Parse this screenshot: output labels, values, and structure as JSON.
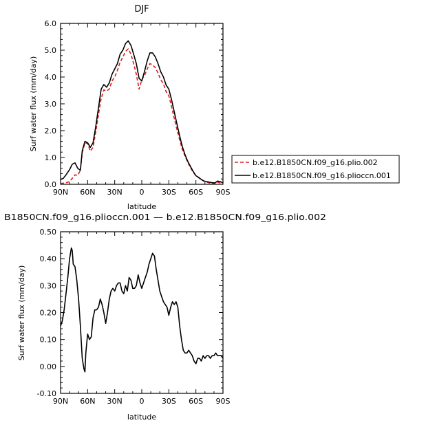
{
  "chart_data": [
    {
      "type": "line",
      "title": "DJF",
      "xlabel": "latitude",
      "ylabel": "Surf water flux (mm/day)",
      "xlim": [
        90,
        -90
      ],
      "ylim": [
        0,
        6
      ],
      "xticks": [
        90,
        60,
        30,
        0,
        -30,
        -60,
        -90
      ],
      "xtick_labels": [
        "90N",
        "60N",
        "30N",
        "0",
        "30S",
        "60S",
        "90S"
      ],
      "yticks": [
        0,
        1,
        2,
        3,
        4,
        5,
        6
      ],
      "ytick_labels": [
        "0.0",
        "1.0",
        "2.0",
        "3.0",
        "4.0",
        "5.0",
        "6.0"
      ],
      "grid": false,
      "legend_position": "right",
      "series": [
        {
          "name": "b.e12.B1850CN.f09_g16.plio.002",
          "color": "#dd1c1c",
          "dash": "dashed",
          "x": [
            90,
            87,
            84,
            80,
            77,
            74,
            71,
            68,
            66,
            63,
            60,
            57,
            54,
            51,
            48,
            45,
            42,
            39,
            36,
            33,
            30,
            27,
            24,
            21,
            18,
            15,
            12,
            9,
            6,
            3,
            0,
            -3,
            -6,
            -9,
            -12,
            -15,
            -18,
            -21,
            -24,
            -27,
            -30,
            -33,
            -36,
            -39,
            -42,
            -45,
            -48,
            -51,
            -54,
            -57,
            -60,
            -63,
            -66,
            -69,
            -72,
            -75,
            -78,
            -81,
            -84,
            -87,
            -90
          ],
          "values": [
            0.03,
            0.04,
            0.06,
            0.1,
            0.22,
            0.35,
            0.33,
            0.52,
            1.18,
            1.55,
            1.52,
            1.24,
            1.38,
            1.95,
            2.6,
            3.2,
            3.52,
            3.48,
            3.55,
            3.85,
            4.0,
            4.25,
            4.55,
            4.75,
            4.95,
            5.05,
            4.85,
            4.5,
            4.1,
            3.55,
            3.9,
            4.05,
            4.3,
            4.5,
            4.45,
            4.35,
            4.15,
            3.9,
            3.75,
            3.45,
            3.3,
            2.9,
            2.45,
            2.05,
            1.65,
            1.3,
            1.05,
            0.82,
            0.62,
            0.45,
            0.32,
            0.25,
            0.17,
            0.12,
            0.08,
            0.05,
            0.03,
            0.02,
            0.08,
            0.05,
            0.02
          ]
        },
        {
          "name": "b.e12.B1850CN.f09_g16.plioccn.001",
          "color": "#000000",
          "dash": "solid",
          "x": [
            90,
            87,
            84,
            80,
            77,
            74,
            71,
            68,
            66,
            63,
            60,
            57,
            54,
            51,
            48,
            45,
            42,
            39,
            36,
            33,
            30,
            27,
            24,
            21,
            18,
            15,
            12,
            9,
            6,
            3,
            0,
            -3,
            -6,
            -9,
            -12,
            -15,
            -18,
            -21,
            -24,
            -27,
            -30,
            -33,
            -36,
            -39,
            -42,
            -45,
            -48,
            -51,
            -54,
            -57,
            -60,
            -63,
            -66,
            -69,
            -72,
            -75,
            -78,
            -81,
            -84,
            -87,
            -90
          ],
          "values": [
            0.18,
            0.22,
            0.35,
            0.55,
            0.75,
            0.8,
            0.6,
            0.52,
            1.25,
            1.6,
            1.55,
            1.38,
            1.55,
            2.15,
            2.85,
            3.55,
            3.72,
            3.62,
            3.78,
            4.1,
            4.3,
            4.5,
            4.85,
            5.0,
            5.25,
            5.35,
            5.18,
            4.85,
            4.5,
            3.95,
            3.85,
            4.2,
            4.6,
            4.9,
            4.9,
            4.75,
            4.5,
            4.2,
            4.0,
            3.7,
            3.55,
            3.15,
            2.7,
            2.25,
            1.8,
            1.4,
            1.1,
            0.85,
            0.66,
            0.48,
            0.32,
            0.26,
            0.18,
            0.12,
            0.1,
            0.08,
            0.06,
            0.05,
            0.12,
            0.1,
            0.05
          ]
        }
      ]
    },
    {
      "type": "line",
      "title": "B1850CN.f09_g16.plioccn.001 — b.e12.B1850CN.f09_g16.plio.002",
      "xlabel": "latitude",
      "ylabel": "Surf water flux (mm/day)",
      "xlim": [
        90,
        -90
      ],
      "ylim": [
        -0.1,
        0.5
      ],
      "xticks": [
        90,
        60,
        30,
        0,
        -30,
        -60,
        -90
      ],
      "xtick_labels": [
        "90N",
        "60N",
        "30N",
        "0",
        "30S",
        "60S",
        "90S"
      ],
      "yticks": [
        -0.1,
        0,
        0.1,
        0.2,
        0.3,
        0.4,
        0.5
      ],
      "ytick_labels": [
        "-0.10",
        "0.00",
        "0.10",
        "0.20",
        "0.30",
        "0.40",
        "0.50"
      ],
      "grid": false,
      "series": [
        {
          "color": "#000000",
          "dash": "solid",
          "x": [
            90,
            88,
            86,
            84,
            82,
            80,
            78,
            77,
            76,
            74,
            72,
            70,
            68,
            66,
            64,
            63,
            62,
            60,
            58,
            56,
            54,
            52,
            50,
            48,
            46,
            44,
            42,
            40,
            38,
            36,
            34,
            32,
            30,
            28,
            26,
            24,
            22,
            20,
            18,
            16,
            14,
            12,
            10,
            8,
            6,
            4,
            2,
            0,
            -2,
            -4,
            -6,
            -8,
            -10,
            -12,
            -14,
            -16,
            -18,
            -20,
            -22,
            -24,
            -26,
            -28,
            -30,
            -32,
            -34,
            -36,
            -38,
            -40,
            -42,
            -44,
            -46,
            -48,
            -50,
            -52,
            -54,
            -56,
            -58,
            -60,
            -62,
            -64,
            -66,
            -68,
            -70,
            -72,
            -74,
            -76,
            -78,
            -80,
            -82,
            -84,
            -86,
            -88,
            -90
          ],
          "values": [
            0.15,
            0.17,
            0.21,
            0.27,
            0.33,
            0.4,
            0.44,
            0.43,
            0.38,
            0.37,
            0.32,
            0.25,
            0.15,
            0.03,
            -0.01,
            -0.02,
            0.05,
            0.12,
            0.1,
            0.11,
            0.18,
            0.21,
            0.21,
            0.22,
            0.25,
            0.23,
            0.2,
            0.16,
            0.2,
            0.25,
            0.28,
            0.29,
            0.28,
            0.3,
            0.31,
            0.31,
            0.28,
            0.27,
            0.3,
            0.28,
            0.33,
            0.32,
            0.29,
            0.29,
            0.3,
            0.34,
            0.31,
            0.29,
            0.31,
            0.33,
            0.35,
            0.38,
            0.4,
            0.42,
            0.41,
            0.36,
            0.32,
            0.28,
            0.26,
            0.24,
            0.23,
            0.22,
            0.19,
            0.22,
            0.24,
            0.23,
            0.24,
            0.22,
            0.15,
            0.1,
            0.06,
            0.05,
            0.05,
            0.06,
            0.05,
            0.04,
            0.02,
            0.01,
            0.03,
            0.03,
            0.02,
            0.04,
            0.03,
            0.04,
            0.04,
            0.03,
            0.04,
            0.04,
            0.05,
            0.04,
            0.04,
            0.04,
            0.03
          ]
        }
      ]
    }
  ]
}
